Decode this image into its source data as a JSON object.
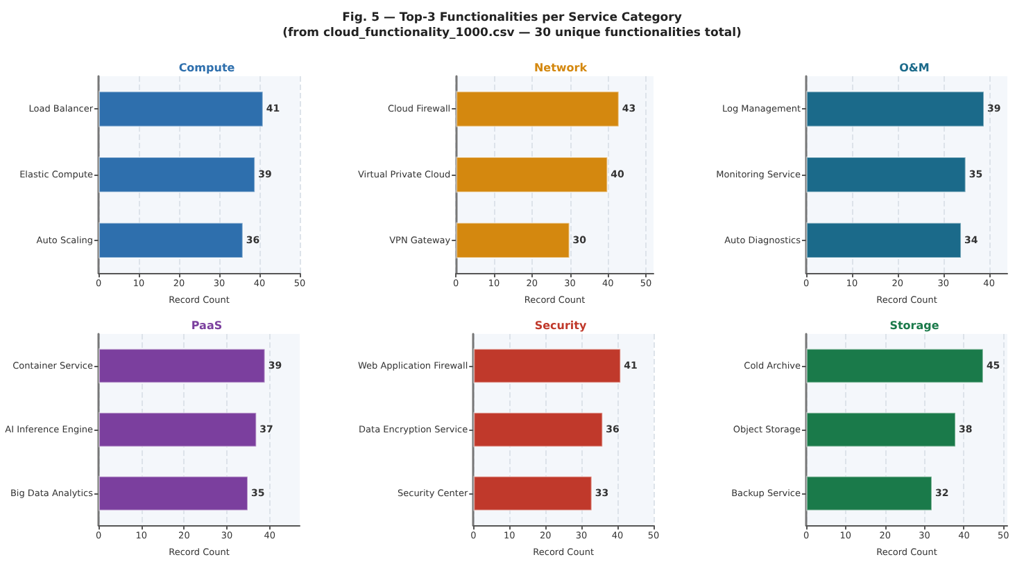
{
  "chart_data": [
    {
      "type": "bar",
      "orientation": "horizontal",
      "title": "Compute",
      "xlabel": "Record Count",
      "annotations": [
        "Fig. 5  —  Top-3 Functionalities per Service Category",
        "(from cloud_functionality_1000.csv — 30 unique functionalities total)"
      ],
      "categories": [
        "Load Balancer",
        "Elastic Compute",
        "Auto Scaling"
      ],
      "values": [
        41,
        39,
        36
      ],
      "color": "#2e6fad",
      "xlim": [
        0,
        50
      ],
      "xticks": [
        0,
        10,
        20,
        30,
        40,
        50
      ],
      "grid": "x",
      "data_labels": true
    },
    {
      "type": "bar",
      "orientation": "horizontal",
      "title": "Network",
      "xlabel": "Record Count",
      "categories": [
        "Cloud Firewall",
        "Virtual Private Cloud",
        "VPN Gateway"
      ],
      "values": [
        43,
        40,
        30
      ],
      "color": "#d4880f",
      "xlim": [
        0,
        52
      ],
      "xticks": [
        0,
        10,
        20,
        30,
        40,
        50
      ],
      "grid": "x",
      "data_labels": true
    },
    {
      "type": "bar",
      "orientation": "horizontal",
      "title": "O&M",
      "xlabel": "Record Count",
      "categories": [
        "Log Management",
        "Monitoring Service",
        "Auto Diagnostics"
      ],
      "values": [
        39,
        35,
        34
      ],
      "color": "#1b6a8a",
      "xlim": [
        0,
        44
      ],
      "xticks": [
        0,
        10,
        20,
        30,
        40
      ],
      "grid": "x",
      "data_labels": true
    },
    {
      "type": "bar",
      "orientation": "horizontal",
      "title": "PaaS",
      "xlabel": "Record Count",
      "categories": [
        "Container Service",
        "AI Inference Engine",
        "Big Data Analytics"
      ],
      "values": [
        39,
        37,
        35
      ],
      "color": "#7b3f9e",
      "xlim": [
        0,
        47
      ],
      "xticks": [
        0,
        10,
        20,
        30,
        40
      ],
      "grid": "x",
      "data_labels": true
    },
    {
      "type": "bar",
      "orientation": "horizontal",
      "title": "Security",
      "xlabel": "Record Count",
      "categories": [
        "Web Application Firewall",
        "Data Encryption Service",
        "Security Center"
      ],
      "values": [
        41,
        36,
        33
      ],
      "color": "#c0392b",
      "xlim": [
        0,
        50
      ],
      "xticks": [
        0,
        10,
        20,
        30,
        40,
        50
      ],
      "grid": "x",
      "data_labels": true
    },
    {
      "type": "bar",
      "orientation": "horizontal",
      "title": "Storage",
      "xlabel": "Record Count",
      "categories": [
        "Cold Archive",
        "Object Storage",
        "Backup Service"
      ],
      "values": [
        45,
        38,
        32
      ],
      "color": "#1a7a4a",
      "xlim": [
        0,
        51
      ],
      "xticks": [
        0,
        10,
        20,
        30,
        40,
        50
      ],
      "grid": "x",
      "data_labels": true
    }
  ]
}
